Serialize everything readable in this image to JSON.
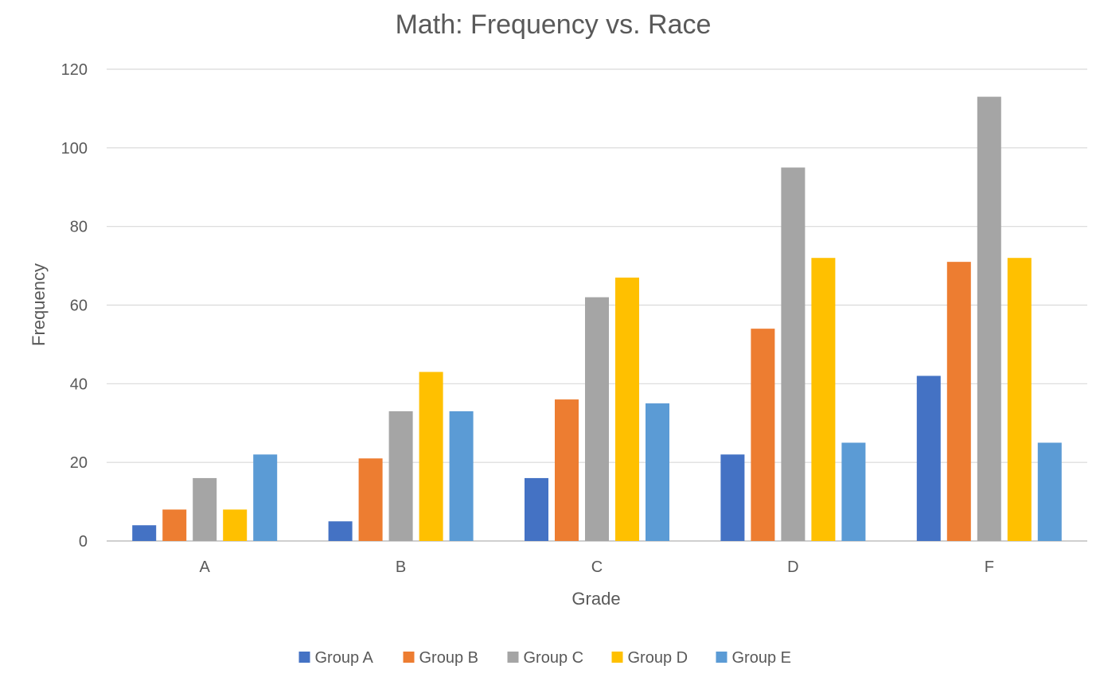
{
  "chart_data": {
    "type": "bar",
    "title": "Math: Frequency vs.  Race",
    "xlabel": "Grade",
    "ylabel": "Frequency",
    "categories": [
      "A",
      "B",
      "C",
      "D",
      "F"
    ],
    "ylim": [
      0,
      120
    ],
    "yticks": [
      0,
      20,
      40,
      60,
      80,
      100,
      120
    ],
    "grid": true,
    "legend_position": "bottom",
    "series": [
      {
        "name": "Group A",
        "color": "#4472c4",
        "values": [
          4,
          5,
          16,
          22,
          42
        ]
      },
      {
        "name": "Group B",
        "color": "#ed7d31",
        "values": [
          8,
          21,
          36,
          54,
          71
        ]
      },
      {
        "name": "Group C",
        "color": "#a5a5a5",
        "values": [
          16,
          33,
          62,
          95,
          113
        ]
      },
      {
        "name": "Group D",
        "color": "#ffc000",
        "values": [
          8,
          43,
          67,
          72,
          72
        ]
      },
      {
        "name": "Group E",
        "color": "#5b9bd5",
        "values": [
          22,
          33,
          35,
          25,
          25
        ]
      }
    ]
  }
}
